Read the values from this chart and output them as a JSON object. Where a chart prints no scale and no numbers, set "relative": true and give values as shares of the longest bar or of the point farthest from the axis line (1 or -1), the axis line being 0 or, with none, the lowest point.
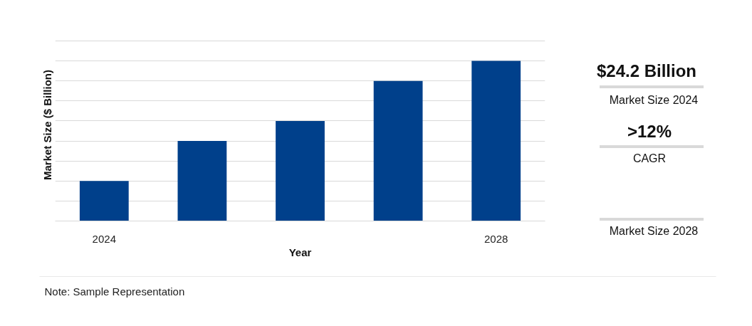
{
  "chart_data": [
    {
      "type": "bar",
      "categories": [
        "2024",
        null,
        null,
        null,
        "2028"
      ],
      "values": [
        0.25,
        0.5,
        0.625,
        0.875,
        1.0
      ],
      "color": "#00408b",
      "relative": true,
      "grid": "y",
      "xlabel": "Year",
      "ylabel": "Market Size ($ Billion)",
      "annotations": [
        "Note: Sample Representation"
      ]
    },
    {
      "type": "other",
      "annotations": [
        "$24.2 Billion",
        "Market Size 2024",
        ">12%",
        "CAGR",
        "Market Size 2028"
      ]
    }
  ]
}
